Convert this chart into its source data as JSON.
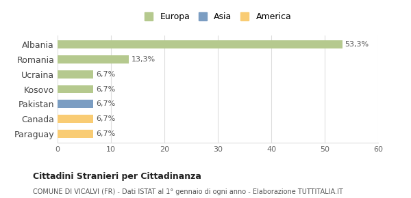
{
  "countries": [
    "Albania",
    "Romania",
    "Ucraina",
    "Kosovo",
    "Pakistan",
    "Canada",
    "Paraguay"
  ],
  "values": [
    53.3,
    13.3,
    6.7,
    6.7,
    6.7,
    6.7,
    6.7
  ],
  "labels": [
    "53,3%",
    "13,3%",
    "6,7%",
    "6,7%",
    "6,7%",
    "6,7%",
    "6,7%"
  ],
  "colors": [
    "#b5c98e",
    "#b5c98e",
    "#b5c98e",
    "#b5c98e",
    "#7b9dc2",
    "#f9cc74",
    "#f9cc74"
  ],
  "legend_items": [
    {
      "label": "Europa",
      "color": "#b5c98e"
    },
    {
      "label": "Asia",
      "color": "#7b9dc2"
    },
    {
      "label": "America",
      "color": "#f9cc74"
    }
  ],
  "xlim": [
    0,
    60
  ],
  "xticks": [
    0,
    10,
    20,
    30,
    40,
    50,
    60
  ],
  "title_main": "Cittadini Stranieri per Cittadinanza",
  "title_sub": "COMUNE DI VICALVI (FR) - Dati ISTAT al 1° gennaio di ogni anno - Elaborazione TUTTITALIA.IT",
  "bg_color": "#ffffff",
  "grid_color": "#dddddd",
  "bar_height": 0.55
}
